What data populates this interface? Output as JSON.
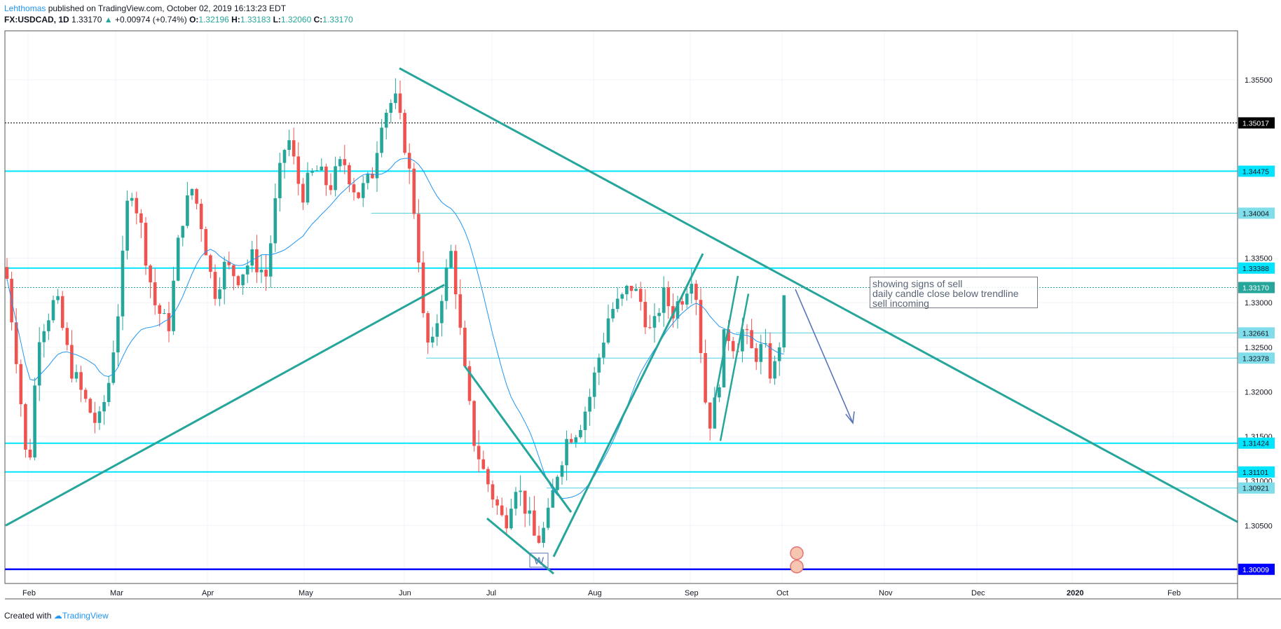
{
  "header": {
    "author": "Lehthomas",
    "published": " published on TradingView.com, October 02, 2019 16:13:23 EDT",
    "symbol": "FX:USDCAD, 1D",
    "last": "1.33170",
    "change": "+0.00974 (+0.74%)",
    "o_label": "O:",
    "o": "1.32196",
    "h_label": "H:",
    "h": "1.33183",
    "l_label": "L:",
    "l": "1.32060",
    "c_label": "C:",
    "c": "1.33170"
  },
  "footer": {
    "created": "Created with",
    "brand": "TradingView"
  },
  "annotation": {
    "lines": [
      "showing signs of sell",
      "daily candle close below trendline",
      "sell incoming"
    ]
  },
  "wave_label": "W",
  "chart_data": {
    "type": "candlestick",
    "ylim": [
      1.2985,
      1.3605
    ],
    "grid": true,
    "x_axis": [
      "Feb",
      "Mar",
      "Apr",
      "May",
      "Jun",
      "Jul",
      "Aug",
      "Sep",
      "Oct",
      "Nov",
      "Dec",
      "2020",
      "Feb"
    ],
    "y_ticks": [
      "1.35500",
      "1.33500",
      "1.33000",
      "1.32500",
      "1.32000",
      "1.31500",
      "1.31000",
      "1.30500"
    ],
    "price_labels": [
      {
        "value": "1.35017",
        "kind": "dotted"
      },
      {
        "value": "1.34475",
        "kind": "hline-cyan"
      },
      {
        "value": "1.34004",
        "kind": "hline-thin"
      },
      {
        "value": "1.33388",
        "kind": "hline-cyan"
      },
      {
        "value": "1.33170",
        "kind": "last"
      },
      {
        "value": "1.32661",
        "kind": "hline-thin"
      },
      {
        "value": "1.32378",
        "kind": "hline-thin"
      },
      {
        "value": "1.31424",
        "kind": "hline-cyan"
      },
      {
        "value": "1.31101",
        "kind": "hline-cyan"
      },
      {
        "value": "1.30921",
        "kind": "hline-thin"
      },
      {
        "value": "1.30009",
        "kind": "hline-blue"
      }
    ],
    "up_color": "#26a69a",
    "down_color": "#ef5350",
    "trendline_color": "#26a69a",
    "ma_color": "#2196f3",
    "last_price": 1.3317,
    "moving_average_shown": true
  },
  "colors": {
    "cyan": "#00e5ff",
    "blue": "#0000ff",
    "axis": "#b2b5be",
    "grid": "#f0f3fa"
  }
}
